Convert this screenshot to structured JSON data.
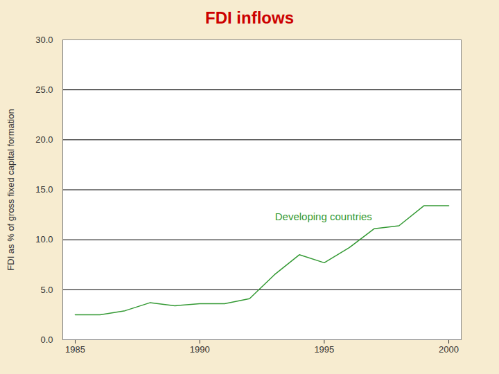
{
  "chart_data": {
    "type": "line",
    "title": "FDI inflows",
    "y_label": "FDI as % of gross fixed capital formation",
    "x": [
      1985,
      1986,
      1987,
      1988,
      1989,
      1990,
      1991,
      1992,
      1993,
      1994,
      1995,
      1996,
      1997,
      1998,
      1999,
      2000
    ],
    "series": [
      {
        "name": "Developing countries",
        "color": "#339933",
        "values": [
          2.5,
          2.5,
          2.9,
          3.7,
          3.4,
          3.6,
          3.6,
          4.1,
          6.5,
          8.5,
          7.7,
          9.2,
          11.1,
          11.4,
          13.4,
          13.4
        ]
      }
    ],
    "xlim": [
      1984.5,
      2000.5
    ],
    "xticks": [
      1985,
      1990,
      1995,
      2000
    ],
    "ylim": [
      0,
      30
    ],
    "yticks": [
      {
        "value": 0,
        "label": "0.0"
      },
      {
        "value": 5,
        "label": "5.0"
      },
      {
        "value": 10,
        "label": "10.0"
      },
      {
        "value": 15,
        "label": "15.0"
      },
      {
        "value": 20,
        "label": "20.0"
      },
      {
        "value": 25,
        "label": "25.0"
      },
      {
        "value": 30,
        "label": "30.0"
      }
    ],
    "grid": true
  }
}
